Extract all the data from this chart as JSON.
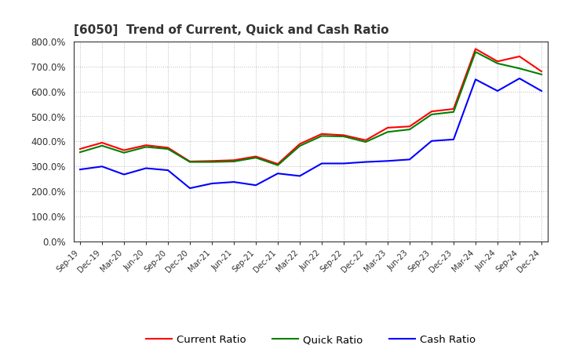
{
  "title": "[6050]  Trend of Current, Quick and Cash Ratio",
  "x_labels": [
    "Sep-19",
    "Dec-19",
    "Mar-20",
    "Jun-20",
    "Sep-20",
    "Dec-20",
    "Mar-21",
    "Jun-21",
    "Sep-21",
    "Dec-21",
    "Mar-22",
    "Jun-22",
    "Sep-22",
    "Dec-22",
    "Mar-23",
    "Jun-23",
    "Sep-23",
    "Dec-23",
    "Mar-24",
    "Jun-24",
    "Sep-24",
    "Dec-24"
  ],
  "current_ratio": [
    370,
    395,
    365,
    385,
    375,
    320,
    322,
    325,
    340,
    310,
    390,
    430,
    425,
    405,
    455,
    460,
    520,
    530,
    770,
    720,
    740,
    680
  ],
  "quick_ratio": [
    357,
    383,
    355,
    378,
    370,
    318,
    318,
    320,
    335,
    305,
    382,
    422,
    420,
    398,
    438,
    448,
    508,
    518,
    758,
    712,
    692,
    668
  ],
  "cash_ratio": [
    288,
    300,
    268,
    293,
    285,
    213,
    232,
    238,
    225,
    272,
    262,
    312,
    312,
    318,
    322,
    328,
    402,
    408,
    648,
    602,
    652,
    602
  ],
  "current_color": "#FF0000",
  "quick_color": "#008000",
  "cash_color": "#0000FF",
  "ylim": [
    0,
    800
  ],
  "yticks": [
    0,
    100,
    200,
    300,
    400,
    500,
    600,
    700,
    800
  ],
  "bg_color": "#FFFFFF",
  "plot_bg_color": "#FFFFFF",
  "grid_color": "#BBBBBB",
  "line_width": 1.5,
  "legend_labels": [
    "Current Ratio",
    "Quick Ratio",
    "Cash Ratio"
  ]
}
